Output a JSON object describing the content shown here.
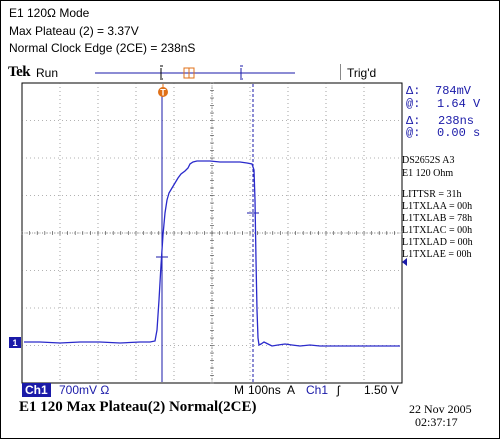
{
  "header": {
    "line1": "E1 120Ω Mode",
    "line2": "Max Plateau (2) = 3.37V",
    "line3": "Normal Clock Edge (2CE) = 238nS"
  },
  "status": {
    "brand": "Tek",
    "run_label": "Run",
    "trig_label": "Trig'd",
    "trigger_marker": "T",
    "channel_marker": "1"
  },
  "cursor_readout": {
    "dv_symbol": "Δ:",
    "dv_value": "784mV",
    "at_symbol_1": "@:",
    "at_v_value": "1.64 V",
    "dt_symbol": "Δ:",
    "dt_value": "238ns",
    "at_symbol_2": "@:",
    "at_t_value": "0.00 s"
  },
  "register_panel": {
    "device": "DS2652S  A3",
    "mode": "E1 120 Ohm",
    "lines": [
      "LITTSR = 31h",
      "L1TXLAA = 00h",
      "L1TXLAB = 78h",
      "L1TXLAC = 00h",
      "L1TXLAD = 00h",
      "L1TXLAE = 00h"
    ]
  },
  "settings_bar": {
    "channel": "Ch1",
    "vdiv": "700mV Ω",
    "m_label": "M",
    "timebase": "100ns",
    "a_label": "A",
    "trig_channel": "Ch1",
    "trig_slope": "ʃ",
    "trig_level": "1.50 V"
  },
  "caption": "E1 120 Max Plateau(2)  Normal(2CE)",
  "timestamp": {
    "date": "22 Nov 2005",
    "time": "02:37:17"
  },
  "colors": {
    "trace": "#2a2acb",
    "cursor": "#1a1aa8",
    "accent_orange": "#e07018",
    "grid": "#555555"
  }
}
